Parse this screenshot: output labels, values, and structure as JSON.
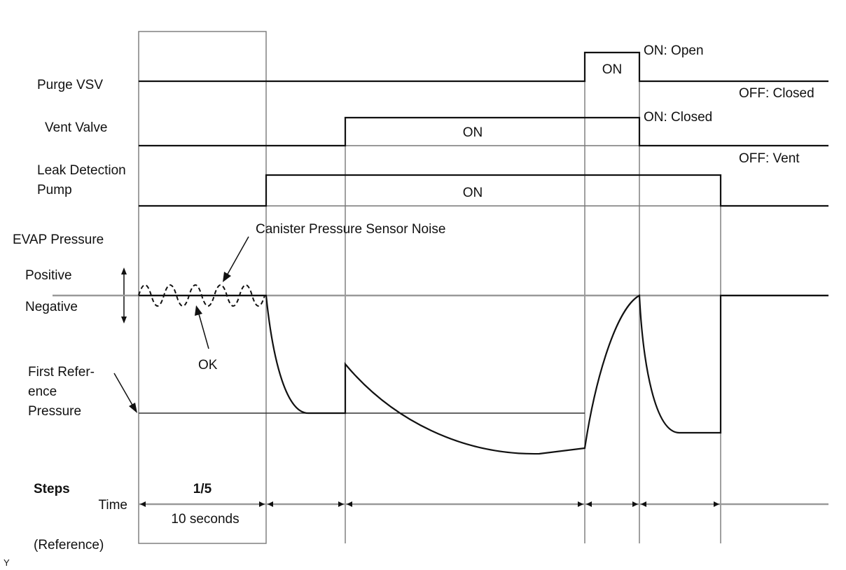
{
  "signals": {
    "purge_vsv": {
      "label": "Purge VSV",
      "on_label": "ON",
      "on_state": "ON: Open",
      "off_state": "OFF: Closed"
    },
    "vent_valve": {
      "label": "Vent Valve",
      "on_label": "ON",
      "on_state": "ON: Closed",
      "off_state": "OFF: Vent"
    },
    "leak_pump": {
      "label_line1": "Leak Detection",
      "label_line2": "Pump",
      "on_label": "ON"
    }
  },
  "evap": {
    "label": "EVAP Pressure",
    "positive": "Positive",
    "negative": "Negative",
    "noise_label": "Canister Pressure Sensor Noise",
    "ok_label": "OK",
    "ref_line1": "First Refer-",
    "ref_line2": "ence",
    "ref_line3": "Pressure"
  },
  "footer": {
    "steps": "Steps",
    "step_value": "1/5",
    "time": "Time",
    "duration": "10 seconds",
    "reference": "(Reference)",
    "corner_mark": "Y"
  }
}
